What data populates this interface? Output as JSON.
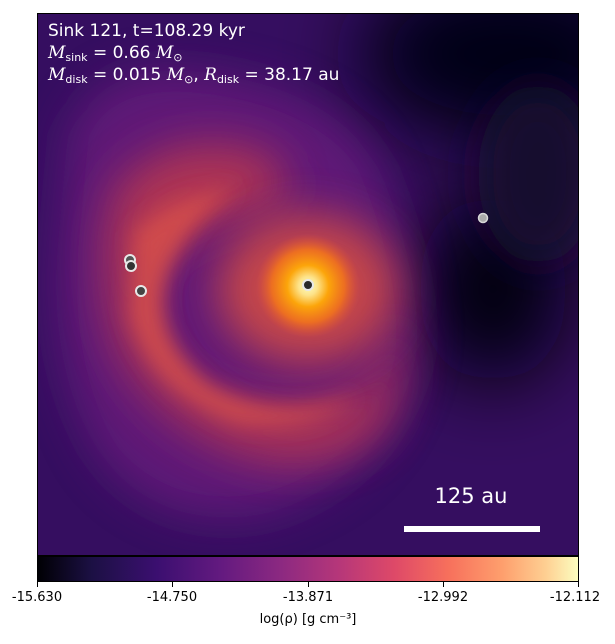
{
  "annotation": {
    "line1": "Sink 121, t=108.29 kyr",
    "msink_symbol": "M",
    "msink_sub": "sink",
    "msink_value": " = 0.66 ",
    "msun_symbol": "M",
    "msun_sub": "⊙",
    "mdisk_symbol": "M",
    "mdisk_sub": "disk",
    "mdisk_value": " = 0.015 ",
    "rdisk_symbol": "R",
    "rdisk_sub": "disk",
    "rdisk_value": " = 38.17 au"
  },
  "scale_bar": {
    "label": "125 au"
  },
  "colorbar": {
    "ticks": [
      "-15.630",
      "-14.750",
      "-13.871",
      "-12.992",
      "-12.112"
    ],
    "label": "log(ρ) [g cm⁻³]",
    "colormap": "inferno"
  },
  "sinks": [
    {
      "kind": "central sink"
    },
    {
      "kind": "sink"
    },
    {
      "kind": "sink"
    },
    {
      "kind": "sink"
    },
    {
      "kind": "distant sink"
    }
  ]
}
